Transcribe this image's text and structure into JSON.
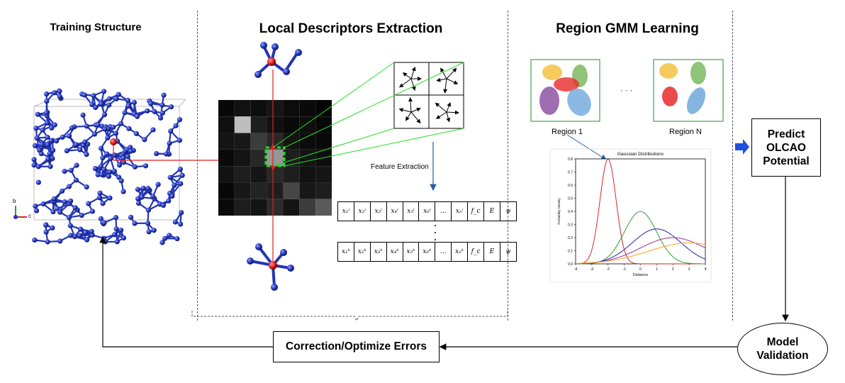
{
  "sections": {
    "training_title": "Training Structure",
    "descriptors_title": "Local Descriptors Extraction",
    "gmm_title": "Region GMM Learning"
  },
  "feature_extraction_label": "Feature Extraction",
  "feature_rows": {
    "row_i": [
      "x₁ⁱ",
      "x₂ⁱ",
      "x₃ⁱ",
      "x₄ⁱ",
      "x₅ⁱ",
      "x₆ⁱ",
      "...",
      "xₙⁱ",
      "f_c",
      "E",
      "ψ"
    ],
    "row_k": [
      "x₁ᵏ",
      "x₂ᵏ",
      "x₃ᵏ",
      "x₄ᵏ",
      "x₅ᵏ",
      "x₆ᵏ",
      "...",
      "xₙᵏ",
      "f_c",
      "E",
      "ψ"
    ]
  },
  "regions": {
    "region1_label": "Region 1",
    "regionN_label": "Region N",
    "ellipsis": "· · ·"
  },
  "gaussian_chart": {
    "title": "Gaussian Distributions",
    "xlabel": "Distance",
    "ylabel": "Probability Density"
  },
  "boxes": {
    "predict": "Predict OLCAO Potential",
    "predict_lines": [
      "Predict",
      "OLCAO",
      "Potential"
    ],
    "validation_lines": [
      "Model",
      "Validation"
    ],
    "correction": "Correction/Optimize Errors"
  },
  "axis_triad": {
    "b": "b",
    "c": "c"
  },
  "colors": {
    "atom_blue": "#2335b8",
    "atom_red": "#e02020",
    "green_line": "#22dd22",
    "arrow_blue": "#1f5fa6",
    "predict_arrow": "#1f4fe0"
  },
  "chart_data": {
    "type": "line",
    "title": "Gaussian Distributions",
    "xlabel": "Distance",
    "ylabel": "Probability Density",
    "xlim": [
      -4,
      4
    ],
    "ylim": [
      0,
      0.8
    ],
    "xticks": [
      -4,
      -3,
      -2,
      -1,
      0,
      1,
      2,
      3,
      4
    ],
    "yticks": [
      0.0,
      0.1,
      0.2,
      0.3,
      0.4,
      0.5,
      0.6,
      0.7,
      0.8
    ],
    "series": [
      {
        "color": "#d62728",
        "mean": -2.0,
        "std": 0.5
      },
      {
        "color": "#2ca02c",
        "mean": 0.0,
        "std": 1.0
      },
      {
        "color": "#1f1fbf",
        "mean": 1.0,
        "std": 1.5
      },
      {
        "color": "#9b30a0",
        "mean": 2.0,
        "std": 2.0
      },
      {
        "color": "#ff9f1c",
        "mean": 3.0,
        "std": 2.5
      }
    ]
  }
}
